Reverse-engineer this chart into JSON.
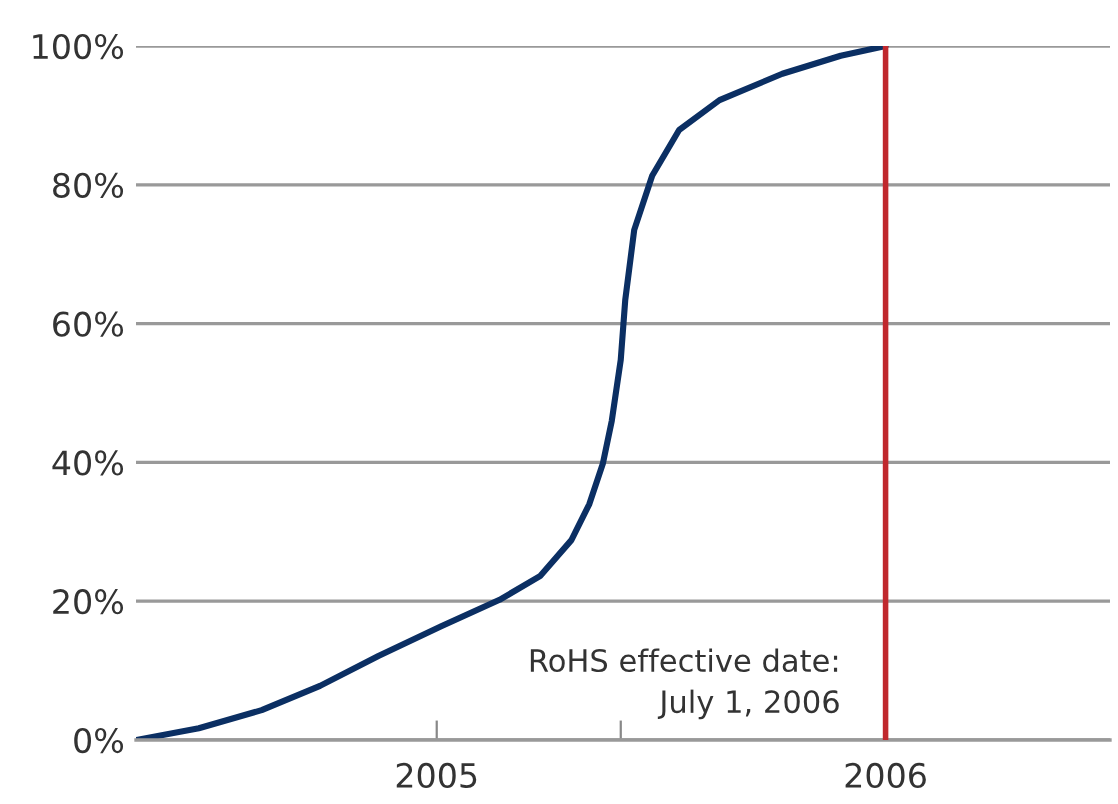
{
  "chart_data": {
    "type": "line",
    "x": [
      2004.83,
      2004.97,
      2005.11,
      2005.24,
      2005.37,
      2005.51,
      2005.64,
      2005.73,
      2005.8,
      2005.84,
      2005.87,
      2005.89,
      2005.91,
      2005.92,
      2005.94,
      2005.98,
      2006.04,
      2006.13,
      2006.27,
      2006.4,
      2006.5
    ],
    "series": [
      {
        "color": "#0b2f63",
        "values": [
          0,
          1.7,
          4.3,
          7.8,
          12.1,
          16.4,
          20.2,
          23.6,
          28.8,
          34,
          39.8,
          46,
          54.8,
          63.4,
          73.5,
          81.3,
          87.9,
          92.2,
          96,
          98.6,
          100
        ]
      }
    ],
    "xlim": [
      2004.83,
      2007.0
    ],
    "xticks": [
      {
        "value": 2005.5,
        "label": "2005"
      },
      {
        "value": 2005.91,
        "label": null
      },
      {
        "value": 2006.5,
        "label": "2006"
      }
    ],
    "ylim": [
      0,
      100
    ],
    "yticks": [
      {
        "value": 0,
        "label": "0%"
      },
      {
        "value": 20,
        "label": "20%"
      },
      {
        "value": 40,
        "label": "40%"
      },
      {
        "value": 60,
        "label": "60%"
      },
      {
        "value": 80,
        "label": "80%"
      },
      {
        "value": 100,
        "label": "100%"
      }
    ],
    "grid": "y",
    "ref_lines": [
      {
        "axis": "x",
        "value": 2006.5,
        "label": "RoHS effective date:\nJuly 1, 2006",
        "color": "#c0282d"
      }
    ]
  }
}
